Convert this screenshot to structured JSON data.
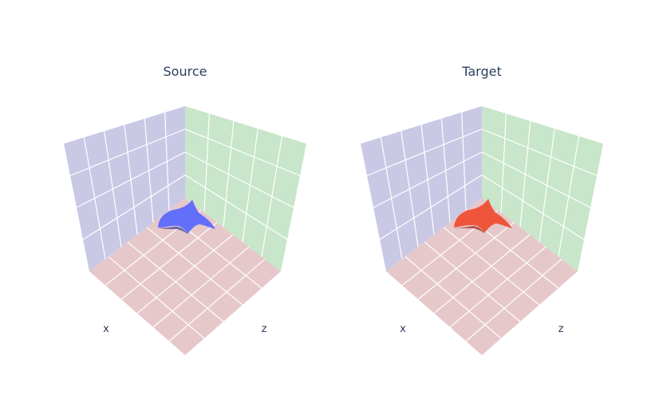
{
  "chart_data": [
    {
      "type": "mesh3d",
      "title": "Source",
      "axes": [
        "x",
        "z"
      ],
      "mesh_color": "#636efa",
      "wall_colors": {
        "left": "#c9c9e6",
        "right": "#c8e6c9",
        "floor": "#e6c8cb"
      },
      "grid": true
    },
    {
      "type": "mesh3d",
      "title": "Target",
      "axes": [
        "x",
        "z"
      ],
      "mesh_color": "#ef553b",
      "wall_colors": {
        "left": "#c9c9e6",
        "right": "#c8e6c9",
        "floor": "#e6c8cb"
      },
      "grid": true
    }
  ]
}
